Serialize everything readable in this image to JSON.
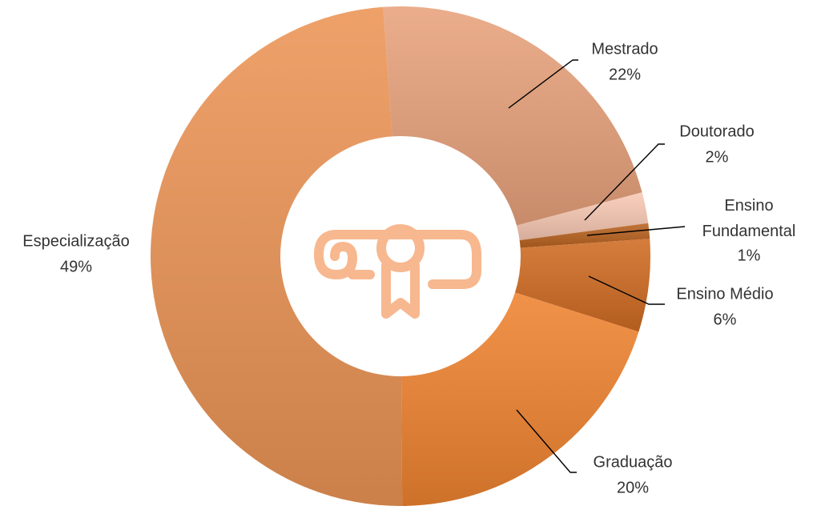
{
  "chart_data": {
    "type": "donut",
    "categories": [
      "Mestrado",
      "Doutorado",
      "Ensino Fundamental",
      "Ensino Médio",
      "Graduação",
      "Especialização"
    ],
    "values": [
      22,
      2,
      1,
      6,
      20,
      49
    ],
    "value_labels": [
      "22%",
      "2%",
      "1%",
      "6%",
      "20%",
      "49%"
    ],
    "colors": [
      "#e8a27c",
      "#f8c9b3",
      "#b8621f",
      "#cf6b22",
      "#ef8330",
      "#ec9455"
    ]
  }
}
